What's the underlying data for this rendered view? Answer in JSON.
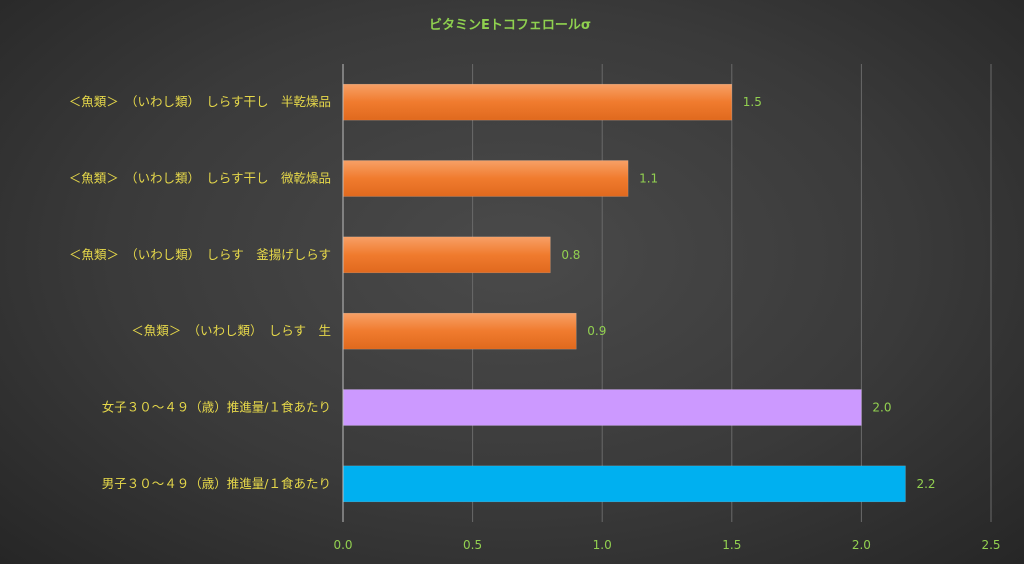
{
  "chart_data": {
    "type": "bar",
    "orientation": "horizontal",
    "title": "ビタミンEトコフェロールσ",
    "categories": [
      "＜魚類＞　（いわし類）　しらす干し　半乾燥品",
      "＜魚類＞　（いわし類）　しらす干し　微乾燥品",
      "＜魚類＞　（いわし類）　しらす　釜揚げしらす",
      "＜魚類＞　（いわし類）　しらす　生",
      "女子３０～４９（歳）推進量/１食あたり",
      "男子３０～４９（歳）推進量/１食あたり"
    ],
    "values": [
      1.5,
      1.1,
      0.8,
      0.9,
      2.0,
      2.17
    ],
    "value_labels": [
      "1.5",
      "1.1",
      "0.8",
      "0.9",
      "2.0",
      "2.2"
    ],
    "bar_colors": [
      "#f07b2e",
      "#f07b2e",
      "#f07b2e",
      "#f07b2e",
      "#cc99ff",
      "#00b0f0"
    ],
    "xlim": [
      0,
      2.5
    ],
    "xticks": [
      "0.0",
      "0.5",
      "1.0",
      "1.5",
      "2.0",
      "2.5"
    ],
    "grid": true,
    "legend": "none"
  }
}
